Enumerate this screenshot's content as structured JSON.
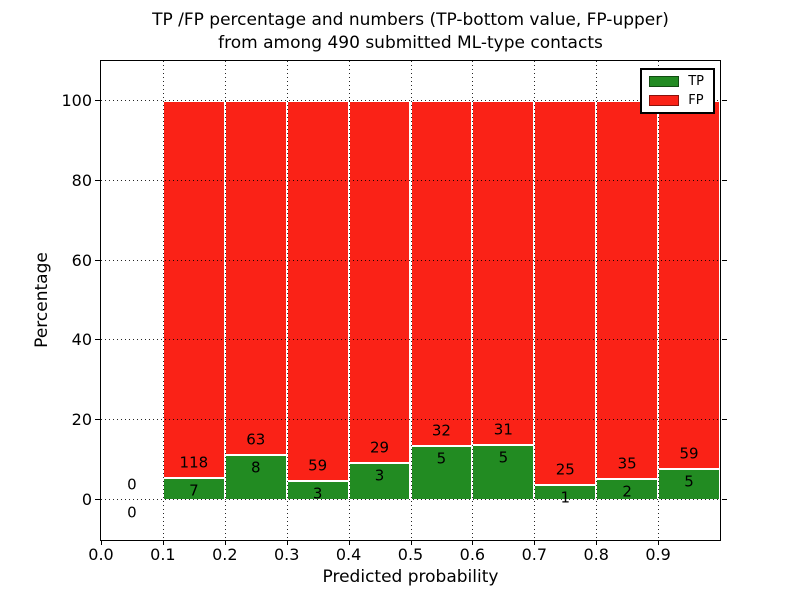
{
  "title": {
    "line1": "TP /FP percentage and numbers (TP-bottom value, FP-upper)",
    "line2": "from among 490 submitted ML-type contacts"
  },
  "chart_data": {
    "type": "bar",
    "subtype": "stacked-percentage",
    "title": "TP /FP percentage and numbers (TP-bottom value, FP-upper)\nfrom among 490 submitted ML-type contacts",
    "xlabel": "Predicted probability",
    "ylabel": "Percentage",
    "total_contacts": 490,
    "xlim": [
      0.0,
      1.0
    ],
    "ylim": [
      -10,
      110
    ],
    "bin_width": 0.1,
    "grid": "dotted-black-over-bars",
    "x_tick_values": [
      0.0,
      0.1,
      0.2,
      0.3,
      0.4,
      0.5,
      0.6,
      0.7,
      0.8,
      0.9
    ],
    "x_tick_labels": [
      "0.0",
      "0.1",
      "0.2",
      "0.3",
      "0.4",
      "0.5",
      "0.6",
      "0.7",
      "0.8",
      "0.9"
    ],
    "y_tick_values": [
      0,
      20,
      40,
      60,
      80,
      100
    ],
    "y_tick_labels": [
      "0",
      "20",
      "40",
      "60",
      "80",
      "100"
    ],
    "bins": [
      {
        "x0": 0.0,
        "tp": 0,
        "fp": 0
      },
      {
        "x0": 0.1,
        "tp": 7,
        "fp": 118
      },
      {
        "x0": 0.2,
        "tp": 8,
        "fp": 63
      },
      {
        "x0": 0.3,
        "tp": 3,
        "fp": 59
      },
      {
        "x0": 0.4,
        "tp": 3,
        "fp": 29
      },
      {
        "x0": 0.5,
        "tp": 5,
        "fp": 32
      },
      {
        "x0": 0.6,
        "tp": 5,
        "fp": 31
      },
      {
        "x0": 0.7,
        "tp": 1,
        "fp": 25
      },
      {
        "x0": 0.8,
        "tp": 2,
        "fp": 35
      },
      {
        "x0": 0.9,
        "tp": 5,
        "fp": 59
      }
    ],
    "colors": {
      "tp": "#228b22",
      "fp": "#fa2217",
      "grid": "#000000",
      "bar_edge": "#ffffff"
    },
    "legend": {
      "position": "upper right",
      "entries": [
        {
          "label": "TP",
          "color": "#228b22"
        },
        {
          "label": "FP",
          "color": "#fa2217"
        }
      ]
    }
  }
}
